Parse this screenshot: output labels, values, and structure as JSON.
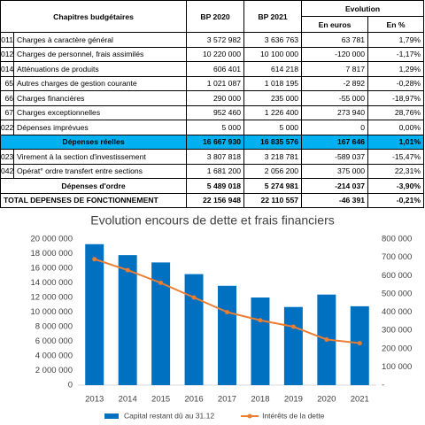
{
  "table": {
    "headers": {
      "chapitres": "Chapitres budgétaires",
      "bp2020": "BP 2020",
      "bp2021": "BP 2021",
      "evolution": "Evolution",
      "en_euros": "En euros",
      "en_pct": "En %"
    },
    "rows": [
      {
        "code": "011",
        "cells": [
          "Charges à caractère général",
          "3 572 982",
          "3 636 763",
          "63 781",
          "1,79%"
        ]
      },
      {
        "code": "012",
        "cells": [
          "Charges de personnel, frais assimilés",
          "10 220 000",
          "10 100 000",
          "-120 000",
          "-1,17%"
        ]
      },
      {
        "code": "014",
        "cells": [
          "Atténuations de produits",
          "606 401",
          "614 218",
          "7 817",
          "1,29%"
        ]
      },
      {
        "code": "65",
        "cells": [
          "Autres charges de gestion courante",
          "1 021 087",
          "1 018 195",
          "-2 892",
          "-0,28%"
        ]
      },
      {
        "code": "66",
        "cells": [
          "Charges financières",
          "290 000",
          "235 000",
          "-55 000",
          "-18,97%"
        ]
      },
      {
        "code": "67",
        "cells": [
          "Charges exceptionnelles",
          "952 460",
          "1 226 400",
          "273 940",
          "28,76%"
        ]
      },
      {
        "code": "022",
        "cells": [
          "Dépenses imprévues",
          "5 000",
          "5 000",
          "0",
          "0,00%"
        ]
      },
      {
        "style": "highlight",
        "cells": [
          "Dépenses réelles",
          "16 667 930",
          "16 835 576",
          "167 646",
          "1,01%"
        ]
      },
      {
        "code": "023",
        "cells": [
          "Virement à la section d'investissement",
          "3 807 818",
          "3 218 781",
          "-589 037",
          "-15,47%"
        ]
      },
      {
        "code": "042",
        "cells": [
          "Opérat° ordre transfert entre sections",
          "1 681 200",
          "2 056 200",
          "375 000",
          "22,31%"
        ]
      },
      {
        "style": "subtotal",
        "cells": [
          "Dépenses d'ordre",
          "5 489 018",
          "5 274 981",
          "-214 037",
          "-3,90%"
        ]
      },
      {
        "style": "total",
        "cells": [
          "TOTAL DEPENSES DE FONCTIONNEMENT",
          "22 156 948",
          "22 110 557",
          "-46 391",
          "-0,21%"
        ]
      }
    ]
  },
  "chart_data": {
    "type": "bar-line",
    "title": "Evolution encours de dette et frais financiers",
    "categories": [
      "2013",
      "2014",
      "2015",
      "2016",
      "2017",
      "2018",
      "2019",
      "2020",
      "2021"
    ],
    "series": [
      {
        "name": "Capital restant dû au 31.12",
        "type": "bar",
        "color": "#0070c0",
        "values": [
          19300000,
          17800000,
          16800000,
          15200000,
          13600000,
          12000000,
          10700000,
          12400000,
          10800000
        ]
      },
      {
        "name": "Intérêts de la dette",
        "type": "line",
        "axis": "y2",
        "color": "#ed7d31",
        "values": [
          690000,
          630000,
          560000,
          480000,
          400000,
          355000,
          320000,
          250000,
          230000
        ]
      }
    ],
    "ylim": [
      0,
      20000000
    ],
    "yticks": [
      0,
      {
        "value": 2000000,
        "label": "2 000 000"
      },
      {
        "value": 4000000,
        "label": "4 000 000"
      },
      {
        "value": 6000000,
        "label": "6 000 000"
      },
      {
        "value": 8000000,
        "label": "8 000 000"
      },
      {
        "value": 10000000,
        "label": "10 000 000"
      },
      {
        "value": 12000000,
        "label": "12 000 000"
      },
      {
        "value": 14000000,
        "label": "14 000 000"
      },
      {
        "value": 16000000,
        "label": "16 000 000"
      },
      {
        "value": 18000000,
        "label": "18 000 000"
      },
      {
        "value": 20000000,
        "label": "20 000 000"
      }
    ],
    "y2lim": [
      0,
      800000
    ],
    "y2ticks": [
      {
        "value": 0,
        "label": "-"
      },
      {
        "value": 100000,
        "label": "100 000"
      },
      {
        "value": 200000,
        "label": "200 000"
      },
      {
        "value": 300000,
        "label": "300 000"
      },
      {
        "value": 400000,
        "label": "400 000"
      },
      {
        "value": 500000,
        "label": "500 000"
      },
      {
        "value": 600000,
        "label": "600 000"
      },
      {
        "value": 700000,
        "label": "700 000"
      },
      {
        "value": 800000,
        "label": "800 000"
      }
    ],
    "legend": "bottom"
  }
}
